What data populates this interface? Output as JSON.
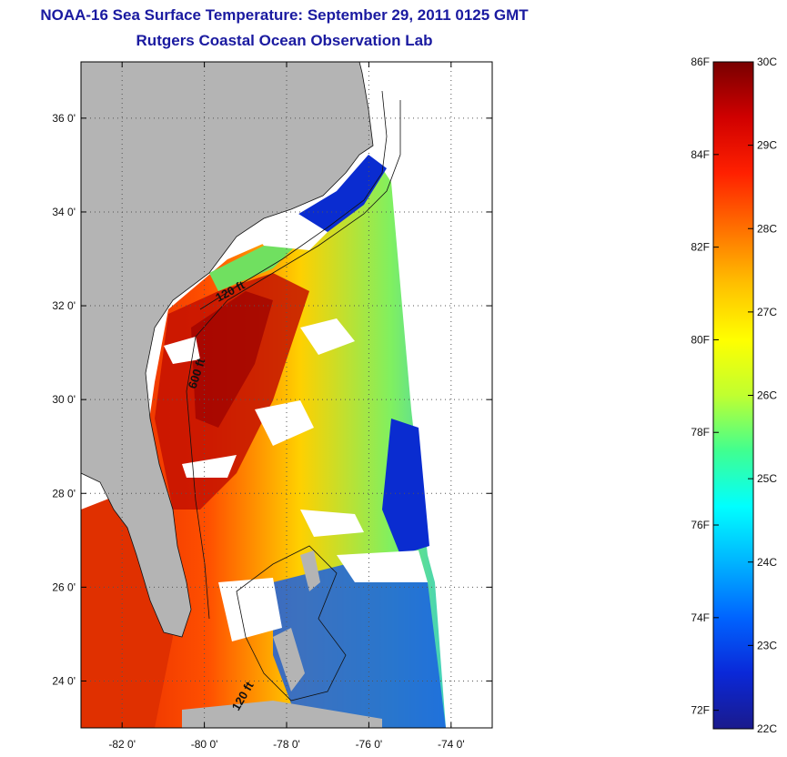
{
  "title": {
    "line1": "NOAA-16 Sea Surface Temperature:  September 29, 2011 0125 GMT",
    "line2": "Rutgers Coastal Ocean Observation Lab"
  },
  "map": {
    "lat_ticks": [
      {
        "value": 36,
        "label": "36 0'"
      },
      {
        "value": 34,
        "label": "34 0'"
      },
      {
        "value": 32,
        "label": "32 0'"
      },
      {
        "value": 30,
        "label": "30 0'"
      },
      {
        "value": 28,
        "label": "28 0'"
      },
      {
        "value": 26,
        "label": "26 0'"
      },
      {
        "value": 24,
        "label": "24 0'"
      }
    ],
    "lon_ticks": [
      {
        "value": -82,
        "label": "-82 0'"
      },
      {
        "value": -80,
        "label": "-80 0'"
      },
      {
        "value": -78,
        "label": "-78 0'"
      },
      {
        "value": -76,
        "label": "-76 0'"
      },
      {
        "value": -74,
        "label": "-74 0'"
      }
    ],
    "lat_range": [
      23,
      37.2
    ],
    "lon_range": [
      -83,
      -73
    ],
    "contour_labels": [
      "120 ft",
      "600 ft",
      "120 ft"
    ],
    "colors": {
      "land": "#b4b4b4",
      "cloud": "#ffffff",
      "grid": "#555555"
    }
  },
  "colorbar": {
    "celsius_labels": [
      "30C",
      "29C",
      "28C",
      "27C",
      "26C",
      "25C",
      "24C",
      "23C",
      "22C"
    ],
    "fahrenheit_labels": [
      "86F",
      "84F",
      "82F",
      "80F",
      "78F",
      "76F",
      "74F",
      "72F"
    ],
    "range_c": [
      22,
      30
    ],
    "colors": [
      "#1a1a8c",
      "#0a28d8",
      "#0064ff",
      "#00b4ff",
      "#00ffff",
      "#40ff90",
      "#c0ff30",
      "#ffff00",
      "#ffc000",
      "#ff7000",
      "#ff2000",
      "#d00000",
      "#780000"
    ]
  }
}
